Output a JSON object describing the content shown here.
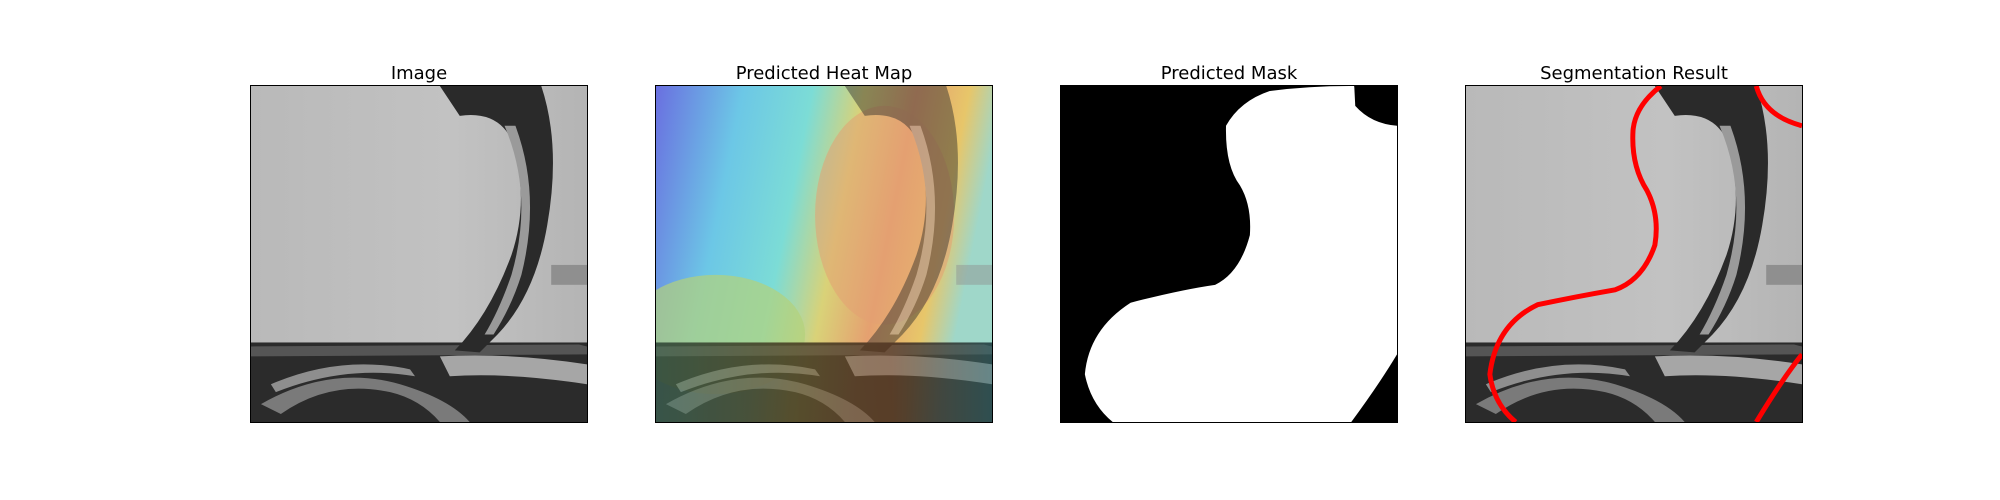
{
  "figure": {
    "panels": [
      {
        "id": "image",
        "title": "Image"
      },
      {
        "id": "heatmap",
        "title": "Predicted Heat Map"
      },
      {
        "id": "mask",
        "title": "Predicted Mask"
      },
      {
        "id": "segmentation",
        "title": "Segmentation Result"
      }
    ]
  },
  "colors": {
    "mask_foreground": "#ffffff",
    "mask_background": "#000000",
    "contour": "#ff0000",
    "frame": "#000000"
  }
}
